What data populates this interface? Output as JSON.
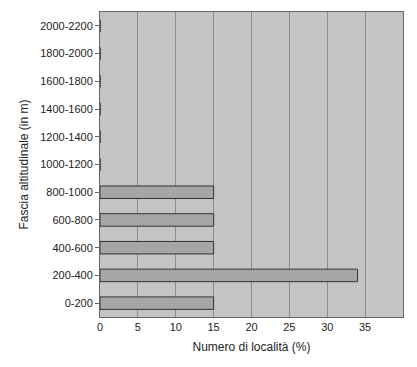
{
  "chart_data": {
    "type": "bar",
    "orientation": "horizontal",
    "x_label": "Numero di località (%)",
    "y_label": "Fascia altitudinale (in m)",
    "categories": [
      "0-200",
      "200-400",
      "400-600",
      "600-800",
      "800-1000",
      "1000-1200",
      "1200-1400",
      "1400-1600",
      "1600-1800",
      "1800-2000",
      "2000-2200"
    ],
    "values": [
      15,
      34,
      15,
      15,
      15,
      0,
      0,
      0,
      0,
      0,
      0
    ],
    "color": "#a6a6a6",
    "xlim": [
      0,
      40
    ],
    "xticks": [
      0,
      5,
      10,
      15,
      20,
      25,
      30,
      35
    ],
    "grid": true
  }
}
